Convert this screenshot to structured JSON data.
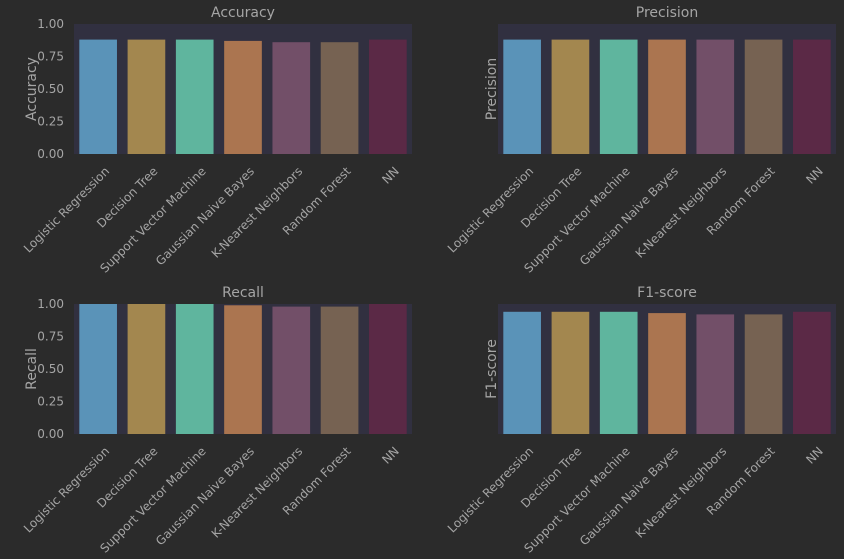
{
  "colors": {
    "background": "#2b2b2b",
    "plot_area": "#313040",
    "text": "#a5a5a5",
    "bars": [
      "#5a93b8",
      "#a3874f",
      "#5fb59e",
      "#ab7550",
      "#724f68",
      "#766252",
      "#5b2946"
    ]
  },
  "categories": [
    "Logistic Regression",
    "Decision Tree",
    "Support Vector Machine",
    "Gaussian Naive Bayes",
    "K-Nearest Neighbors",
    "Random Forest",
    "NN"
  ],
  "chart_data": [
    {
      "type": "bar",
      "title": "Accuracy",
      "ylabel": "Accuracy",
      "ylim": [
        0,
        1.0
      ],
      "yticks": [
        "0.00",
        "0.25",
        "0.50",
        "0.75",
        "1.00"
      ],
      "show_yticks": true,
      "categories": [
        "Logistic Regression",
        "Decision Tree",
        "Support Vector Machine",
        "Gaussian Naive Bayes",
        "K-Nearest Neighbors",
        "Random Forest",
        "NN"
      ],
      "values": [
        0.88,
        0.88,
        0.88,
        0.87,
        0.86,
        0.86,
        0.88
      ]
    },
    {
      "type": "bar",
      "title": "Precision",
      "ylabel": "Precision",
      "ylim": [
        0,
        1.0
      ],
      "yticks": [],
      "show_yticks": false,
      "categories": [
        "Logistic Regression",
        "Decision Tree",
        "Support Vector Machine",
        "Gaussian Naive Bayes",
        "K-Nearest Neighbors",
        "Random Forest",
        "NN"
      ],
      "values": [
        0.88,
        0.88,
        0.88,
        0.88,
        0.88,
        0.88,
        0.88
      ]
    },
    {
      "type": "bar",
      "title": "Recall",
      "ylabel": "Recall",
      "ylim": [
        0,
        1.0
      ],
      "yticks": [
        "0.00",
        "0.25",
        "0.50",
        "0.75",
        "1.00"
      ],
      "show_yticks": true,
      "categories": [
        "Logistic Regression",
        "Decision Tree",
        "Support Vector Machine",
        "Gaussian Naive Bayes",
        "K-Nearest Neighbors",
        "Random Forest",
        "NN"
      ],
      "values": [
        1.0,
        1.0,
        1.0,
        0.99,
        0.98,
        0.98,
        1.0
      ]
    },
    {
      "type": "bar",
      "title": "F1-score",
      "ylabel": "F1-score",
      "ylim": [
        0,
        1.0
      ],
      "yticks": [],
      "show_yticks": false,
      "categories": [
        "Logistic Regression",
        "Decision Tree",
        "Support Vector Machine",
        "Gaussian Naive Bayes",
        "K-Nearest Neighbors",
        "Random Forest",
        "NN"
      ],
      "values": [
        0.94,
        0.94,
        0.94,
        0.93,
        0.92,
        0.92,
        0.94
      ]
    }
  ]
}
